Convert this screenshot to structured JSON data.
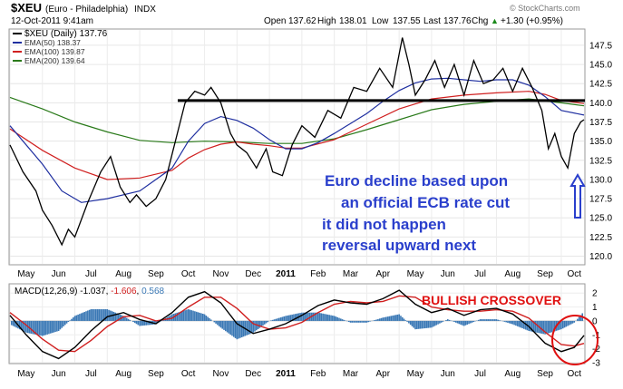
{
  "header": {
    "symbol": "$XEU",
    "name": "(Euro - Philadelphia)",
    "exchange": "INDX",
    "date": "12-Oct-2011 9:41am",
    "open_label": "Open",
    "open": "137.62",
    "high_label": "High",
    "high": "138.01",
    "low_label": "Low",
    "low": "137.55",
    "last_label": "Last",
    "last": "137.76",
    "chg_label": "Chg",
    "chg": "+1.30 (+0.95%)",
    "watermark": "© StockCharts.com",
    "arrow_up": "▲"
  },
  "legend": [
    {
      "label": "$XEU (Daily) 137.76",
      "color": "#000000"
    },
    {
      "label": "EMA(50) 138.37",
      "color": "#1f2fa0"
    },
    {
      "label": "EMA(100) 139.87",
      "color": "#d02020"
    },
    {
      "label": "EMA(200) 139.64",
      "color": "#2a7a1a"
    }
  ],
  "annotations": {
    "lines": [
      "Euro decline based upon",
      "an official ECB rate cut",
      "it did not happen",
      "reversal upward next"
    ],
    "color": "#2a3fcc",
    "crossover": "BULLISH CROSSOVER",
    "crossover_color": "#e01010"
  },
  "macd_legend": {
    "label": "MACD(12,26,9)",
    "macd": "-1.037",
    "signal": "-1.606",
    "hist": "0.568",
    "macd_color": "#000000",
    "signal_color": "#d02020",
    "hist_color": "#3a78b5"
  },
  "chart_data": [
    {
      "type": "line",
      "title": "$XEU (Euro - Philadelphia) INDX",
      "x_labels": [
        "May",
        "Jun",
        "Jul",
        "Aug",
        "Sep",
        "Oct",
        "Nov",
        "Dec",
        "2011",
        "Feb",
        "Mar",
        "Apr",
        "May",
        "Jun",
        "Jul",
        "Aug",
        "Sep",
        "Oct"
      ],
      "x_positions": [
        0.5,
        1.5,
        2.5,
        3.5,
        4.5,
        5.5,
        6.5,
        7.5,
        8.5,
        9.5,
        10.5,
        11.5,
        12.5,
        13.5,
        14.5,
        15.5,
        16.5,
        17.4
      ],
      "ylim": [
        119,
        149.5
      ],
      "yticks": [
        "120.0",
        "122.5",
        "125.0",
        "127.5",
        "130.0",
        "132.5",
        "135.0",
        "137.5",
        "140.0",
        "142.5",
        "145.0",
        "147.5"
      ],
      "resistance_level": 140.3,
      "series": [
        {
          "name": "$XEU (Daily) 137.76",
          "color": "#000000",
          "x": [
            0,
            0.4,
            0.8,
            1.0,
            1.3,
            1.6,
            1.8,
            2.0,
            2.4,
            2.8,
            3.1,
            3.4,
            3.7,
            3.9,
            4.2,
            4.5,
            4.8,
            5.1,
            5.4,
            5.7,
            6.0,
            6.2,
            6.5,
            6.8,
            7.0,
            7.3,
            7.6,
            7.9,
            8.1,
            8.4,
            8.7,
            9.0,
            9.4,
            9.8,
            10.2,
            10.6,
            11.0,
            11.4,
            11.8,
            12.1,
            12.3,
            12.5,
            12.8,
            13.1,
            13.4,
            13.7,
            14.0,
            14.3,
            14.6,
            14.9,
            15.2,
            15.5,
            15.8,
            16.1,
            16.4,
            16.6,
            16.8,
            17.0,
            17.2,
            17.4,
            17.6,
            17.7
          ],
          "y": [
            134.5,
            131,
            128.5,
            126,
            124,
            121.5,
            123.5,
            122.5,
            127,
            131,
            133,
            129,
            127,
            128,
            126.5,
            127.5,
            130,
            135,
            140,
            141.5,
            141,
            142,
            140,
            136,
            134.5,
            133.5,
            131.5,
            134,
            131,
            130.5,
            134.5,
            137,
            135.5,
            139,
            138,
            142,
            141.5,
            144.5,
            142,
            148.5,
            145,
            141,
            143,
            145.5,
            142,
            145,
            141,
            145.5,
            142.5,
            143,
            144.5,
            141.5,
            144.5,
            142,
            139,
            134,
            136,
            133,
            131.5,
            136,
            137.5,
            137.8
          ]
        },
        {
          "name": "EMA(50) 138.37",
          "color": "#1f2fa0",
          "x": [
            0,
            1,
            1.6,
            2.2,
            3,
            4,
            5,
            5.5,
            6,
            6.5,
            7,
            7.5,
            8,
            8.5,
            9,
            9.5,
            10,
            10.5,
            11,
            11.5,
            12,
            12.5,
            13,
            13.5,
            14,
            14.5,
            15,
            15.5,
            16,
            16.5,
            17,
            17.7
          ],
          "y": [
            137,
            132,
            128.5,
            127,
            127.5,
            128.5,
            131.5,
            135,
            137.3,
            138.2,
            137.7,
            136.7,
            135.2,
            134,
            134,
            134.8,
            136,
            137.3,
            138.6,
            140.2,
            141.6,
            142.6,
            143.1,
            143.2,
            143,
            142.8,
            143,
            143,
            142.3,
            140.8,
            139,
            138.4
          ]
        },
        {
          "name": "EMA(100) 139.87",
          "color": "#d02020",
          "x": [
            0,
            1,
            2,
            3,
            4,
            5,
            5.5,
            6,
            6.5,
            7,
            7.5,
            8,
            8.5,
            9,
            10,
            11,
            12,
            13,
            14,
            15,
            16,
            16.5,
            17,
            17.7
          ],
          "y": [
            136.6,
            133.8,
            131.5,
            130,
            130.2,
            131.2,
            132.8,
            133.9,
            134.6,
            134.9,
            134.6,
            134.4,
            134.1,
            134.1,
            135.2,
            137.2,
            139.2,
            140.5,
            141,
            141.3,
            141.5,
            141.1,
            140.3,
            139.9
          ]
        },
        {
          "name": "EMA(200) 139.64",
          "color": "#2a7a1a",
          "x": [
            0,
            1,
            2,
            3,
            4,
            5,
            6,
            7,
            8,
            9,
            10,
            11,
            12,
            13,
            14,
            15,
            16,
            17,
            17.7
          ],
          "y": [
            140.7,
            139.2,
            137.5,
            136.2,
            135.1,
            134.8,
            135,
            134.9,
            134.7,
            134.7,
            135.3,
            136.5,
            137.8,
            139.1,
            139.8,
            140.2,
            140.5,
            140,
            139.6
          ]
        }
      ]
    },
    {
      "type": "line",
      "title": "MACD(12,26,9) -1.037, -1.606, 0.568",
      "x_labels": [
        "May",
        "Jun",
        "Jul",
        "Aug",
        "Sep",
        "Oct",
        "Nov",
        "Dec",
        "2011",
        "Feb",
        "Mar",
        "Apr",
        "May",
        "Jun",
        "Jul",
        "Aug",
        "Sep",
        "Oct"
      ],
      "ylim": [
        -3,
        2.6
      ],
      "yticks": [
        "2",
        "1",
        "0",
        "-1",
        "-2",
        "-3"
      ],
      "series": [
        {
          "name": "MACD",
          "color": "#000000",
          "x": [
            0,
            0.5,
            1,
            1.5,
            2,
            2.5,
            3,
            3.5,
            4,
            4.5,
            5,
            5.5,
            6,
            6.5,
            7,
            7.5,
            8,
            8.5,
            9,
            9.5,
            10,
            10.5,
            11,
            11.5,
            12,
            12.5,
            13,
            13.5,
            14,
            14.5,
            15,
            15.5,
            16,
            16.5,
            17,
            17.4,
            17.7
          ],
          "y": [
            0.4,
            -1.0,
            -2.2,
            -2.7,
            -1.9,
            -0.7,
            0.3,
            0.6,
            0.1,
            -0.2,
            0.6,
            1.7,
            2.1,
            1.3,
            -0.2,
            -0.9,
            -0.6,
            -0.2,
            0.4,
            1.1,
            1.5,
            1.3,
            1.2,
            1.6,
            2.2,
            1.2,
            0.6,
            0.9,
            0.4,
            0.8,
            0.9,
            0.5,
            -0.4,
            -1.6,
            -2.2,
            -1.9,
            -1.04
          ]
        },
        {
          "name": "Signal",
          "color": "#d02020",
          "x": [
            0,
            0.5,
            1,
            1.5,
            2,
            2.5,
            3,
            3.5,
            4,
            4.5,
            5,
            5.5,
            6,
            6.5,
            7,
            7.5,
            8,
            8.5,
            9,
            9.5,
            10,
            10.5,
            11,
            11.5,
            12,
            12.5,
            13,
            13.5,
            14,
            14.5,
            15,
            15.5,
            16,
            16.5,
            17,
            17.4,
            17.7
          ],
          "y": [
            0.6,
            -0.3,
            -1.3,
            -2.1,
            -2.2,
            -1.4,
            -0.4,
            0.3,
            0.4,
            0.0,
            0.2,
            1.0,
            1.7,
            1.7,
            0.9,
            -0.2,
            -0.6,
            -0.5,
            -0.1,
            0.6,
            1.2,
            1.4,
            1.3,
            1.4,
            1.8,
            1.7,
            1.0,
            0.8,
            0.7,
            0.7,
            0.8,
            0.7,
            0.2,
            -0.8,
            -1.7,
            -1.8,
            -1.61
          ]
        }
      ]
    }
  ]
}
